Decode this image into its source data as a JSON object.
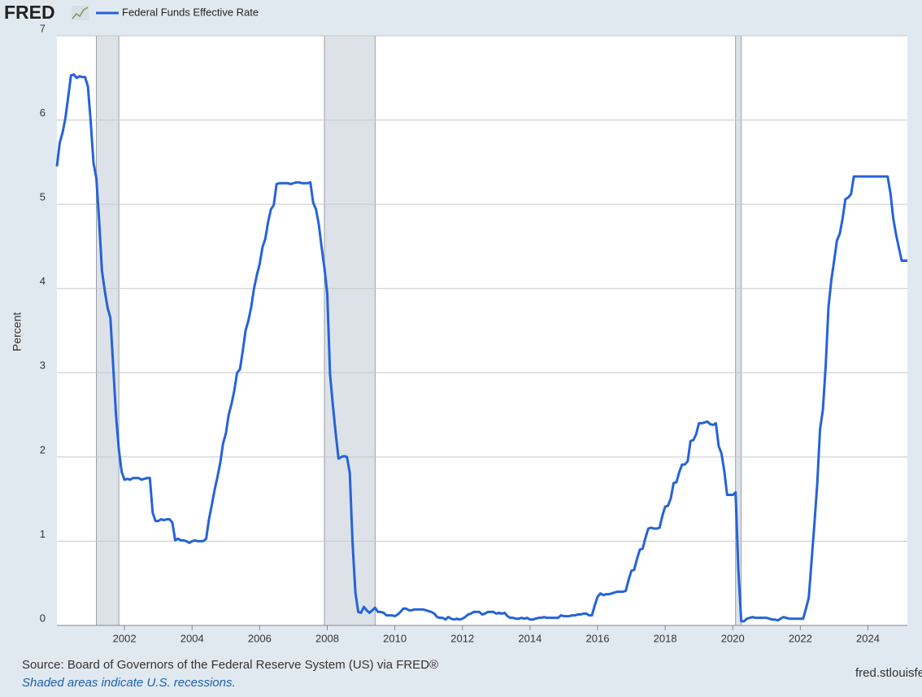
{
  "logo": "FRED",
  "chart_data": {
    "type": "line",
    "series": [
      {
        "name": "Federal Funds Effective Rate",
        "color": "#2563d8",
        "values": [
          5.45,
          5.73,
          5.85,
          6.02,
          6.27,
          6.53,
          6.54,
          6.5,
          6.52,
          6.51,
          6.51,
          6.4,
          5.98,
          5.49,
          5.31,
          4.8,
          4.21,
          3.97,
          3.77,
          3.65,
          3.07,
          2.49,
          2.09,
          1.82,
          1.73,
          1.74,
          1.73,
          1.75,
          1.75,
          1.75,
          1.73,
          1.74,
          1.75,
          1.75,
          1.34,
          1.24,
          1.24,
          1.26,
          1.25,
          1.26,
          1.26,
          1.22,
          1.01,
          1.03,
          1.01,
          1.01,
          1.0,
          0.98,
          1.0,
          1.01,
          1.0,
          1.0,
          1.0,
          1.03,
          1.26,
          1.43,
          1.61,
          1.76,
          1.93,
          2.16,
          2.28,
          2.5,
          2.63,
          2.79,
          3.0,
          3.04,
          3.26,
          3.5,
          3.62,
          3.78,
          4.0,
          4.16,
          4.29,
          4.49,
          4.59,
          4.79,
          4.94,
          4.99,
          5.24,
          5.25,
          5.25,
          5.25,
          5.25,
          5.24,
          5.25,
          5.26,
          5.26,
          5.25,
          5.25,
          5.25,
          5.26,
          5.02,
          4.94,
          4.76,
          4.49,
          4.24,
          3.94,
          2.98,
          2.61,
          2.28,
          1.98,
          2.0,
          2.01,
          2.0,
          1.81,
          0.97,
          0.39,
          0.16,
          0.15,
          0.22,
          0.18,
          0.15,
          0.18,
          0.21,
          0.16,
          0.16,
          0.15,
          0.12,
          0.12,
          0.12,
          0.11,
          0.13,
          0.16,
          0.2,
          0.2,
          0.18,
          0.18,
          0.19,
          0.19,
          0.19,
          0.19,
          0.18,
          0.17,
          0.16,
          0.14,
          0.1,
          0.09,
          0.09,
          0.07,
          0.1,
          0.08,
          0.07,
          0.08,
          0.07,
          0.08,
          0.1,
          0.13,
          0.14,
          0.16,
          0.16,
          0.16,
          0.13,
          0.14,
          0.16,
          0.16,
          0.16,
          0.14,
          0.15,
          0.14,
          0.15,
          0.11,
          0.09,
          0.09,
          0.08,
          0.08,
          0.09,
          0.08,
          0.09,
          0.07,
          0.07,
          0.08,
          0.09,
          0.09,
          0.1,
          0.09,
          0.09,
          0.09,
          0.09,
          0.09,
          0.12,
          0.11,
          0.11,
          0.11,
          0.12,
          0.12,
          0.13,
          0.13,
          0.14,
          0.14,
          0.12,
          0.12,
          0.24,
          0.34,
          0.38,
          0.36,
          0.37,
          0.37,
          0.38,
          0.39,
          0.4,
          0.4,
          0.4,
          0.41,
          0.54,
          0.65,
          0.66,
          0.79,
          0.9,
          0.91,
          1.04,
          1.15,
          1.16,
          1.15,
          1.15,
          1.16,
          1.3,
          1.41,
          1.42,
          1.51,
          1.69,
          1.7,
          1.82,
          1.91,
          1.91,
          1.95,
          2.19,
          2.2,
          2.27,
          2.4,
          2.4,
          2.41,
          2.42,
          2.39,
          2.38,
          2.4,
          2.13,
          2.04,
          1.83,
          1.55,
          1.55,
          1.55,
          1.58,
          0.65,
          0.05,
          0.05,
          0.08,
          0.09,
          0.1,
          0.09,
          0.09,
          0.09,
          0.09,
          0.09,
          0.08,
          0.07,
          0.07,
          0.06,
          0.08,
          0.1,
          0.09,
          0.08,
          0.08,
          0.08,
          0.08,
          0.08,
          0.08,
          0.2,
          0.33,
          0.77,
          1.21,
          1.68,
          2.33,
          2.56,
          3.08,
          3.78,
          4.1,
          4.33,
          4.57,
          4.65,
          4.83,
          5.06,
          5.08,
          5.12,
          5.33,
          5.33,
          5.33,
          5.33,
          5.33,
          5.33,
          5.33,
          5.33,
          5.33,
          5.33,
          5.33,
          5.33,
          5.33,
          5.13,
          4.83,
          4.64,
          4.48,
          4.33,
          4.33,
          4.33
        ]
      }
    ],
    "x": [
      2000,
      2000.083,
      2000.167,
      2000.25,
      2000.333,
      2000.417,
      2000.5,
      2000.583,
      2000.667,
      2000.75,
      2000.833,
      2000.917,
      2001,
      2001.083,
      2001.167,
      2001.25,
      2001.333,
      2001.417,
      2001.5,
      2001.583,
      2001.667,
      2001.75,
      2001.833,
      2001.917,
      2002,
      2002.083,
      2002.167,
      2002.25,
      2002.333,
      2002.417,
      2002.5,
      2002.583,
      2002.667,
      2002.75,
      2002.833,
      2002.917,
      2003,
      2003.083,
      2003.167,
      2003.25,
      2003.333,
      2003.417,
      2003.5,
      2003.583,
      2003.667,
      2003.75,
      2003.833,
      2003.917,
      2004,
      2004.083,
      2004.167,
      2004.25,
      2004.333,
      2004.417,
      2004.5,
      2004.583,
      2004.667,
      2004.75,
      2004.833,
      2004.917,
      2005,
      2005.083,
      2005.167,
      2005.25,
      2005.333,
      2005.417,
      2005.5,
      2005.583,
      2005.667,
      2005.75,
      2005.833,
      2005.917,
      2006,
      2006.083,
      2006.167,
      2006.25,
      2006.333,
      2006.417,
      2006.5,
      2006.583,
      2006.667,
      2006.75,
      2006.833,
      2006.917,
      2007,
      2007.083,
      2007.167,
      2007.25,
      2007.333,
      2007.417,
      2007.5,
      2007.583,
      2007.667,
      2007.75,
      2007.833,
      2007.917,
      2008,
      2008.083,
      2008.167,
      2008.25,
      2008.333,
      2008.417,
      2008.5,
      2008.583,
      2008.667,
      2008.75,
      2008.833,
      2008.917,
      2009,
      2009.083,
      2009.167,
      2009.25,
      2009.333,
      2009.417,
      2009.5,
      2009.583,
      2009.667,
      2009.75,
      2009.833,
      2009.917,
      2010,
      2010.083,
      2010.167,
      2010.25,
      2010.333,
      2010.417,
      2010.5,
      2010.583,
      2010.667,
      2010.75,
      2010.833,
      2010.917,
      2011,
      2011.083,
      2011.167,
      2011.25,
      2011.333,
      2011.417,
      2011.5,
      2011.583,
      2011.667,
      2011.75,
      2011.833,
      2011.917,
      2012,
      2012.083,
      2012.167,
      2012.25,
      2012.333,
      2012.417,
      2012.5,
      2012.583,
      2012.667,
      2012.75,
      2012.833,
      2012.917,
      2013,
      2013.083,
      2013.167,
      2013.25,
      2013.333,
      2013.417,
      2013.5,
      2013.583,
      2013.667,
      2013.75,
      2013.833,
      2013.917,
      2014,
      2014.083,
      2014.167,
      2014.25,
      2014.333,
      2014.417,
      2014.5,
      2014.583,
      2014.667,
      2014.75,
      2014.833,
      2014.917,
      2015,
      2015.083,
      2015.167,
      2015.25,
      2015.333,
      2015.417,
      2015.5,
      2015.583,
      2015.667,
      2015.75,
      2015.833,
      2015.917,
      2016,
      2016.083,
      2016.167,
      2016.25,
      2016.333,
      2016.417,
      2016.5,
      2016.583,
      2016.667,
      2016.75,
      2016.833,
      2016.917,
      2017,
      2017.083,
      2017.167,
      2017.25,
      2017.333,
      2017.417,
      2017.5,
      2017.583,
      2017.667,
      2017.75,
      2017.833,
      2017.917,
      2018,
      2018.083,
      2018.167,
      2018.25,
      2018.333,
      2018.417,
      2018.5,
      2018.583,
      2018.667,
      2018.75,
      2018.833,
      2018.917,
      2019,
      2019.083,
      2019.167,
      2019.25,
      2019.333,
      2019.417,
      2019.5,
      2019.583,
      2019.667,
      2019.75,
      2019.833,
      2019.917,
      2020,
      2020.083,
      2020.167,
      2020.25,
      2020.333,
      2020.417,
      2020.5,
      2020.583,
      2020.667,
      2020.75,
      2020.833,
      2020.917,
      2021,
      2021.083,
      2021.167,
      2021.25,
      2021.333,
      2021.417,
      2021.5,
      2021.583,
      2021.667,
      2021.75,
      2021.833,
      2021.917,
      2022,
      2022.083,
      2022.167,
      2022.25,
      2022.333,
      2022.417,
      2022.5,
      2022.583,
      2022.667,
      2022.75,
      2022.833,
      2022.917,
      2023,
      2023.083,
      2023.167,
      2023.25,
      2023.333,
      2023.417,
      2023.5,
      2023.583,
      2023.667,
      2023.75,
      2023.833,
      2023.917,
      2024,
      2024.083,
      2024.167,
      2024.25,
      2024.333,
      2024.417,
      2024.5,
      2024.583,
      2024.667,
      2024.75,
      2024.833,
      2024.917,
      2025,
      2025.083,
      2025.167
    ],
    "recessions": [
      [
        2001.167,
        2001.833
      ],
      [
        2007.917,
        2009.417
      ],
      [
        2020.083,
        2020.25
      ]
    ],
    "ylabel": "Percent",
    "xlim": [
      2000,
      2025.167
    ],
    "ylim": [
      0,
      7
    ],
    "xticks": [
      2002,
      2004,
      2006,
      2008,
      2010,
      2012,
      2014,
      2016,
      2018,
      2020,
      2022,
      2024
    ],
    "yticks": [
      0,
      1,
      2,
      3,
      4,
      5,
      6,
      7
    ],
    "grid": true,
    "source": "Source: Board of Governors of the Federal Reserve System (US) via FRED®",
    "note": "Shaded areas indicate U.S. recessions.",
    "site": "fred.stlouisfed.org"
  }
}
